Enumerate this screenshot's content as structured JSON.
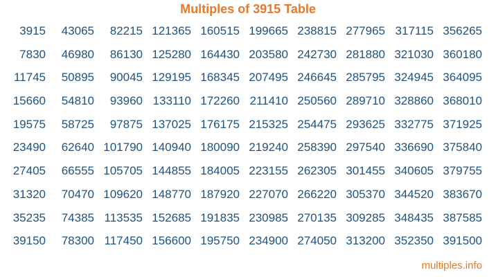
{
  "title": "Multiples of 3915 Table",
  "footer": "multiples.info",
  "colors": {
    "title": "#e8782a",
    "numbers": "#1f5280"
  },
  "rows": [
    [
      "3915",
      "43065",
      "82215",
      "121365",
      "160515",
      "199665",
      "238815",
      "277965",
      "317115",
      "356265"
    ],
    [
      "7830",
      "46980",
      "86130",
      "125280",
      "164430",
      "203580",
      "242730",
      "281880",
      "321030",
      "360180"
    ],
    [
      "11745",
      "50895",
      "90045",
      "129195",
      "168345",
      "207495",
      "246645",
      "285795",
      "324945",
      "364095"
    ],
    [
      "15660",
      "54810",
      "93960",
      "133110",
      "172260",
      "211410",
      "250560",
      "289710",
      "328860",
      "368010"
    ],
    [
      "19575",
      "58725",
      "97875",
      "137025",
      "176175",
      "215325",
      "254475",
      "293625",
      "332775",
      "371925"
    ],
    [
      "23490",
      "62640",
      "101790",
      "140940",
      "180090",
      "219240",
      "258390",
      "297540",
      "336690",
      "375840"
    ],
    [
      "27405",
      "66555",
      "105705",
      "144855",
      "184005",
      "223155",
      "262305",
      "301455",
      "340605",
      "379755"
    ],
    [
      "31320",
      "70470",
      "109620",
      "148770",
      "187920",
      "227070",
      "266220",
      "305370",
      "344520",
      "383670"
    ],
    [
      "35235",
      "74385",
      "113535",
      "152685",
      "191835",
      "230985",
      "270135",
      "309285",
      "348435",
      "387585"
    ],
    [
      "39150",
      "78300",
      "117450",
      "156600",
      "195750",
      "234900",
      "274050",
      "313200",
      "352350",
      "391500"
    ]
  ]
}
